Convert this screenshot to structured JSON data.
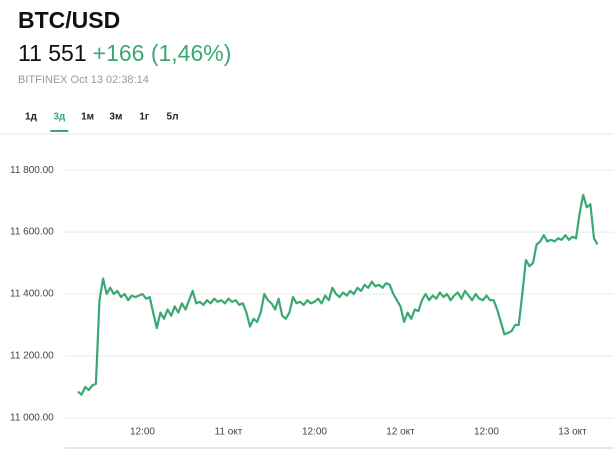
{
  "header": {
    "title": "BTC/USD",
    "price": "11 551",
    "change": "+166 (1,46%)",
    "source": "BITFINEX Oct 13 02:38:14",
    "tabs": [
      "1д",
      "3д",
      "1м",
      "3м",
      "1г",
      "5л"
    ],
    "active_tab": "3д"
  },
  "chart_data": {
    "type": "line",
    "color": "#3aa872",
    "grid": true,
    "ylim": [
      10903,
      11865
    ],
    "yticks": [
      {
        "value": 11000,
        "label": "11 000.00"
      },
      {
        "value": 11200,
        "label": "11 200.00"
      },
      {
        "value": 11400,
        "label": "11 400.00"
      },
      {
        "value": 11600,
        "label": "11 600.00"
      },
      {
        "value": 11800,
        "label": "11 800.00"
      }
    ],
    "categories": [
      null,
      null,
      null,
      null,
      null,
      null,
      null,
      null,
      null,
      null,
      null,
      null,
      null,
      null,
      null,
      null,
      null,
      null,
      "12:00",
      null,
      null,
      null,
      null,
      null,
      null,
      null,
      null,
      null,
      null,
      null,
      null,
      null,
      null,
      null,
      null,
      null,
      null,
      null,
      null,
      null,
      null,
      null,
      "11 окт",
      null,
      null,
      null,
      null,
      null,
      null,
      null,
      null,
      null,
      null,
      null,
      null,
      null,
      null,
      null,
      null,
      null,
      null,
      null,
      null,
      null,
      null,
      null,
      "12:00",
      null,
      null,
      null,
      null,
      null,
      null,
      null,
      null,
      null,
      null,
      null,
      null,
      null,
      null,
      null,
      null,
      null,
      null,
      null,
      null,
      null,
      null,
      null,
      "12 окт",
      null,
      null,
      null,
      null,
      null,
      null,
      null,
      null,
      null,
      null,
      null,
      null,
      null,
      null,
      null,
      null,
      null,
      null,
      null,
      null,
      null,
      null,
      null,
      "12:00",
      null,
      null,
      null,
      null,
      null,
      null,
      null,
      null,
      null,
      null,
      null,
      null,
      null,
      null,
      null,
      null,
      null,
      null,
      null,
      null,
      null,
      null,
      null,
      "13 окт",
      null,
      null,
      null,
      null,
      null,
      null,
      null
    ],
    "values": [
      11085,
      11075,
      11100,
      11090,
      11105,
      11110,
      11380,
      11450,
      11400,
      11420,
      11400,
      11410,
      11390,
      11400,
      11380,
      11395,
      11390,
      11395,
      11400,
      11385,
      11390,
      11340,
      11290,
      11340,
      11320,
      11350,
      11330,
      11360,
      11340,
      11370,
      11350,
      11380,
      11410,
      11370,
      11375,
      11365,
      11380,
      11370,
      11385,
      11375,
      11380,
      11370,
      11385,
      11375,
      11380,
      11365,
      11370,
      11340,
      11295,
      11320,
      11310,
      11340,
      11400,
      11380,
      11370,
      11350,
      11385,
      11330,
      11320,
      11340,
      11390,
      11370,
      11375,
      11365,
      11380,
      11370,
      11375,
      11385,
      11370,
      11395,
      11380,
      11420,
      11400,
      11390,
      11405,
      11395,
      11410,
      11400,
      11420,
      11410,
      11430,
      11420,
      11440,
      11425,
      11430,
      11420,
      11435,
      11430,
      11400,
      11380,
      11360,
      11310,
      11340,
      11320,
      11350,
      11345,
      11380,
      11400,
      11380,
      11395,
      11385,
      11405,
      11390,
      11400,
      11380,
      11395,
      11405,
      11385,
      11410,
      11395,
      11380,
      11400,
      11385,
      11380,
      11395,
      11380,
      11380,
      11350,
      11310,
      11270,
      11275,
      11280,
      11300,
      11300,
      11400,
      11510,
      11490,
      11500,
      11560,
      11570,
      11590,
      11570,
      11575,
      11570,
      11580,
      11575,
      11590,
      11575,
      11585,
      11580,
      11660,
      11720,
      11680,
      11690,
      11580,
      11560
    ]
  }
}
